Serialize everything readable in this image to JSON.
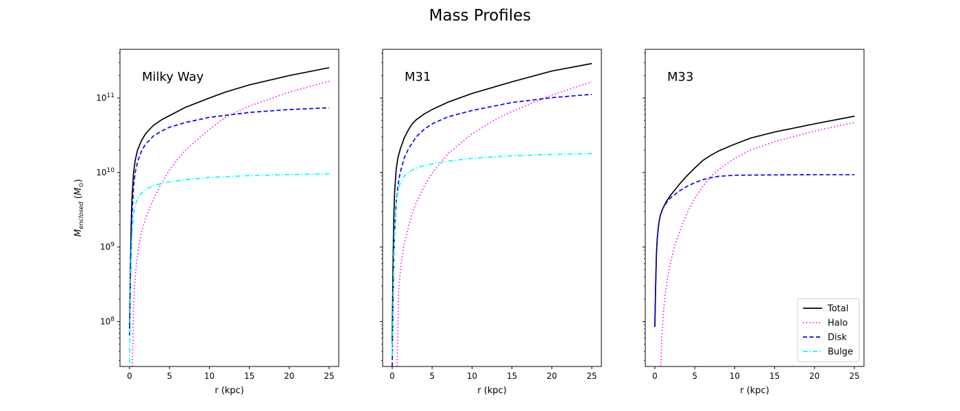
{
  "figure": {
    "title": "Mass Profiles"
  },
  "chart_data": [
    {
      "type": "line",
      "panel_label": "Milky Way",
      "xlabel": "r (kpc)",
      "ylabel_main": "M",
      "ylabel_sub": "enclosed",
      "ylabel_unit_main": "M",
      "ylabel_unit_sub": "⊙",
      "xlim": [
        -1.2,
        26.2
      ],
      "ylim": [
        25000000.0,
        450000000000.0
      ],
      "yscale": "log",
      "xticks": [
        0,
        5,
        10,
        15,
        20,
        25
      ],
      "yticks": [
        {
          "base": "10",
          "exp": "8",
          "value": 100000000.0
        },
        {
          "base": "10",
          "exp": "9",
          "value": 1000000000.0
        },
        {
          "base": "10",
          "exp": "10",
          "value": 10000000000.0
        },
        {
          "base": "10",
          "exp": "11",
          "value": 100000000000.0
        }
      ],
      "show_y_tick_labels": true,
      "legend": null,
      "series": [
        {
          "name": "Total",
          "color": "#000000",
          "style": "solid",
          "x": [
            0,
            0.1,
            0.2,
            0.3,
            0.5,
            0.7,
            1.0,
            1.5,
            2,
            2.5,
            3,
            4,
            5,
            7,
            10,
            12,
            15,
            20,
            25
          ],
          "y": [
            80000000.0,
            500000000.0,
            2000000000.0,
            4500000000.0,
            10000000000.0,
            14500000000.0,
            20000000000.0,
            27000000000.0,
            33000000000.0,
            38000000000.0,
            43000000000.0,
            51000000000.0,
            58000000000.0,
            75000000000.0,
            100000000000.0,
            120000000000.0,
            150000000000.0,
            200000000000.0,
            255000000000.0
          ]
        },
        {
          "name": "Halo",
          "color": "#ff00ff",
          "style": "dotted",
          "x": [
            0.35,
            0.5,
            0.7,
            0.9,
            1.2,
            1.5,
            2,
            2.5,
            3,
            4,
            5,
            6,
            7,
            10,
            12,
            15,
            20,
            25
          ],
          "y": [
            25000000.0,
            180000000.0,
            400000000.0,
            650000000.0,
            1100000000.0,
            1600000000.0,
            2400000000.0,
            3300000000.0,
            4400000000.0,
            7200000000.0,
            10800000000.0,
            15000000000.0,
            20000000000.0,
            38000000000.0,
            55000000000.0,
            78000000000.0,
            120000000000.0,
            168000000000.0
          ]
        },
        {
          "name": "Disk",
          "color": "#0000ff",
          "style": "dashed",
          "x": [
            0,
            0.1,
            0.2,
            0.3,
            0.5,
            0.7,
            1.0,
            1.5,
            2,
            3,
            4,
            5,
            7,
            10,
            15,
            20,
            25
          ],
          "y": [
            65000000.0,
            300000000.0,
            1200000000.0,
            2600000000.0,
            6500000000.0,
            10000000000.0,
            14000000000.0,
            19500000000.0,
            24000000000.0,
            31000000000.0,
            36000000000.0,
            40500000000.0,
            47000000000.0,
            55000000000.0,
            64000000000.0,
            70000000000.0,
            74000000000.0
          ]
        },
        {
          "name": "Bulge",
          "color": "#00ffff",
          "style": "dashdot",
          "x": [
            0,
            0.1,
            0.2,
            0.3,
            0.5,
            0.7,
            1.0,
            1.5,
            2,
            3,
            4,
            5,
            7,
            10,
            15,
            20,
            25
          ],
          "y": [
            28000000.0,
            300000000.0,
            800000000.0,
            1500000000.0,
            2700000000.0,
            3600000000.0,
            4500000000.0,
            5300000000.0,
            5900000000.0,
            6700000000.0,
            7100000000.0,
            7500000000.0,
            8000000000.0,
            8600000000.0,
            9100000000.0,
            9400000000.0,
            9600000000.0
          ]
        }
      ]
    },
    {
      "type": "line",
      "panel_label": "M31",
      "xlabel": "r (kpc)",
      "xlim": [
        -1.2,
        26.2
      ],
      "ylim": [
        25000000.0,
        450000000000.0
      ],
      "yscale": "log",
      "xticks": [
        0,
        5,
        10,
        15,
        20,
        25
      ],
      "yticks": [
        {
          "value": 100000000.0
        },
        {
          "value": 1000000000.0
        },
        {
          "value": 10000000000.0
        },
        {
          "value": 100000000000.0
        }
      ],
      "show_y_tick_labels": false,
      "legend": null,
      "series": [
        {
          "name": "Total",
          "color": "#000000",
          "style": "solid",
          "x": [
            0,
            0.1,
            0.2,
            0.3,
            0.5,
            0.7,
            1.0,
            1.5,
            2,
            2.5,
            3,
            4,
            5,
            7,
            10,
            15,
            20,
            25
          ],
          "y": [
            50000000.0,
            600000000.0,
            2500000000.0,
            5500000000.0,
            11000000000.0,
            15500000000.0,
            20500000000.0,
            29000000000.0,
            37000000000.0,
            45000000000.0,
            51000000000.0,
            61000000000.0,
            70000000000.0,
            88000000000.0,
            115000000000.0,
            165000000000.0,
            230000000000.0,
            290000000000.0
          ]
        },
        {
          "name": "Halo",
          "color": "#ff00ff",
          "style": "dotted",
          "x": [
            0.6,
            0.7,
            0.8,
            1.0,
            1.2,
            1.5,
            2,
            2.5,
            3,
            4,
            5,
            7,
            10,
            13,
            15,
            20,
            25
          ],
          "y": [
            25000000.0,
            60000000.0,
            250000000.0,
            450000000.0,
            700000000.0,
            1100000000.0,
            1800000000.0,
            2800000000.0,
            3900000000.0,
            6500000000.0,
            9800000000.0,
            18000000000.0,
            33000000000.0,
            52000000000.0,
            66000000000.0,
            110000000000.0,
            165000000000.0
          ]
        },
        {
          "name": "Disk",
          "color": "#0000ff",
          "style": "dashed",
          "x": [
            0,
            0.1,
            0.2,
            0.3,
            0.5,
            0.7,
            1.0,
            1.5,
            2,
            3,
            4,
            5,
            7,
            10,
            15,
            20,
            25
          ],
          "y": [
            25000000.0,
            150000000.0,
            700000000.0,
            1600000000.0,
            4000000000.0,
            6500000000.0,
            10000000000.0,
            15500000000.0,
            20500000000.0,
            30000000000.0,
            38000000000.0,
            45000000000.0,
            56000000000.0,
            68000000000.0,
            87000000000.0,
            101000000000.0,
            112000000000.0
          ]
        },
        {
          "name": "Bulge",
          "color": "#00ffff",
          "style": "dashdot",
          "x": [
            0,
            0.1,
            0.2,
            0.3,
            0.5,
            0.7,
            1.0,
            1.5,
            2,
            3,
            4,
            5,
            7,
            10,
            15,
            20,
            25
          ],
          "y": [
            35000000.0,
            150000000.0,
            800000000.0,
            2000000000.0,
            4000000000.0,
            5600000000.0,
            7200000000.0,
            8900000000.0,
            10000000000.0,
            11500000000.0,
            12400000000.0,
            13000000000.0,
            14200000000.0,
            15500000000.0,
            16800000000.0,
            17500000000.0,
            18000000000.0
          ]
        }
      ]
    },
    {
      "type": "line",
      "panel_label": "M33",
      "xlabel": "r (kpc)",
      "xlim": [
        -1.2,
        26.2
      ],
      "ylim": [
        25000000.0,
        450000000000.0
      ],
      "yscale": "log",
      "xticks": [
        0,
        5,
        10,
        15,
        20,
        25
      ],
      "yticks": [
        {
          "value": 100000000.0
        },
        {
          "value": 1000000000.0
        },
        {
          "value": 10000000000.0
        },
        {
          "value": 100000000000.0
        }
      ],
      "show_y_tick_labels": false,
      "legend": {
        "location": "lower-right",
        "entries": [
          "Total",
          "Halo",
          "Disk",
          "Bulge"
        ]
      },
      "series": [
        {
          "name": "Total",
          "color": "#000000",
          "style": "solid",
          "x": [
            0,
            0.1,
            0.2,
            0.3,
            0.5,
            0.7,
            1.0,
            1.5,
            2,
            3,
            4,
            5,
            6,
            7,
            8,
            10,
            12,
            15,
            20,
            25
          ],
          "y": [
            85000000.0,
            300000000.0,
            800000000.0,
            1300000000.0,
            2100000000.0,
            2700000000.0,
            3300000000.0,
            4200000000.0,
            5000000000.0,
            6800000000.0,
            9000000000.0,
            11500000000.0,
            14500000000.0,
            17000000000.0,
            19500000000.0,
            24000000000.0,
            29000000000.0,
            35000000000.0,
            45000000000.0,
            57000000000.0
          ]
        },
        {
          "name": "Halo",
          "color": "#ff00ff",
          "style": "dotted",
          "x": [
            0.75,
            0.9,
            1.1,
            1.3,
            1.6,
            2,
            2.5,
            3,
            3.5,
            4,
            5,
            6,
            7,
            8,
            10,
            12,
            15,
            20,
            25
          ],
          "y": [
            25000000.0,
            70000000.0,
            140000000.0,
            230000000.0,
            400000000.0,
            650000000.0,
            1050000000.0,
            1500000000.0,
            2100000000.0,
            2800000000.0,
            4500000000.0,
            6500000000.0,
            8800000000.0,
            11000000000.0,
            15500000000.0,
            20000000000.0,
            26000000000.0,
            36000000000.0,
            47000000000.0
          ]
        },
        {
          "name": "Disk",
          "color": "#0000ff",
          "style": "dashed",
          "x": [
            0,
            0.1,
            0.2,
            0.3,
            0.5,
            0.7,
            1.0,
            1.5,
            2,
            3,
            4,
            5,
            6,
            7,
            8,
            10,
            15,
            20,
            25
          ],
          "y": [
            85000000.0,
            300000000.0,
            800000000.0,
            1300000000.0,
            2100000000.0,
            2700000000.0,
            3300000000.0,
            4000000000.0,
            4600000000.0,
            5600000000.0,
            6500000000.0,
            7300000000.0,
            8000000000.0,
            8500000000.0,
            8900000000.0,
            9200000000.0,
            9300000000.0,
            9350000000.0,
            9350000000.0
          ]
        }
      ]
    }
  ]
}
